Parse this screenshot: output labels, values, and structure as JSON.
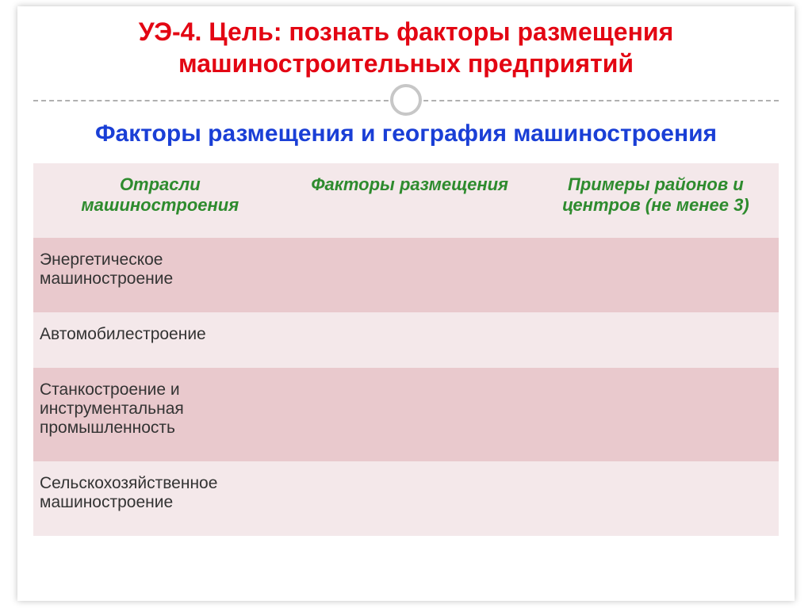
{
  "title": "УЭ-4. Цель: познать факторы размещения машиностроительных предприятий",
  "subtitle": "Факторы размещения и география машиностроения",
  "table": {
    "headers": {
      "col1": "Отрасли машиностроения",
      "col2": "Факторы размещения",
      "col3": "Примеры районов и центров (не менее 3)"
    },
    "rows": [
      {
        "branch": "Энергетическое машиностроение",
        "factors": "",
        "examples": ""
      },
      {
        "branch": "Автомобилестроение",
        "factors": "",
        "examples": ""
      },
      {
        "branch": "Станкостроение и инструментальная промышленность",
        "factors": "",
        "examples": ""
      },
      {
        "branch": "Сельскохозяйственное машиностроение",
        "factors": "",
        "examples": ""
      }
    ],
    "colors": {
      "title_color": "#e30613",
      "subtitle_color": "#1a3fd6",
      "header_text_color": "#2e8b2e",
      "row_dark_bg": "#e9c9cd",
      "row_light_bg": "#f4e8ea",
      "body_text_color": "#333333",
      "divider_line": "#b0b0b0",
      "divider_circle_border": "#c7c7c7"
    },
    "typography": {
      "title_fontsize": 32,
      "subtitle_fontsize": 30,
      "header_fontsize": 22,
      "cell_fontsize": 21
    }
  }
}
